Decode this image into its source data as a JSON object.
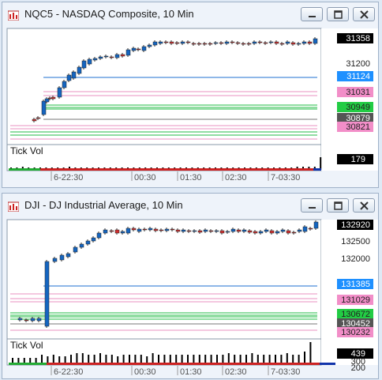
{
  "windows": [
    {
      "title": "NQC5 - NASDAQ Composite, 10 Min",
      "indicator_label": "Tick Vol",
      "x_labels": [
        "6-22:30",
        "00:30",
        "01:30",
        "02:30",
        "7-03:30"
      ],
      "price_labels": [
        {
          "text": "31358",
          "bg": "#000000",
          "fg": "#ffffff"
        },
        {
          "text": "31200",
          "bg": "",
          "fg": "#222222"
        },
        {
          "text": "31124",
          "bg": "#1e90ff",
          "fg": "#ffffff"
        },
        {
          "text": "31031",
          "bg": "#f28ec8",
          "fg": "#222222"
        },
        {
          "text": "30949",
          "bg": "#22cc44",
          "fg": "#222222"
        },
        {
          "text": "30879",
          "bg": "#555555",
          "fg": "#ffffff"
        },
        {
          "text": "30821",
          "bg": "#f28ec8",
          "fg": "#222222"
        }
      ],
      "vol_label": {
        "text": "179",
        "bg": "#000000",
        "fg": "#ffffff"
      }
    },
    {
      "title": "DJI - DJ Industrial Average, 10 Min",
      "indicator_label": "Tick Vol",
      "x_labels": [
        "6-22:30",
        "00:30",
        "01:30",
        "02:30",
        "7-03:30"
      ],
      "price_labels": [
        {
          "text": "132920",
          "bg": "#000000",
          "fg": "#ffffff"
        },
        {
          "text": "132500",
          "bg": "",
          "fg": "#222222"
        },
        {
          "text": "132000",
          "bg": "",
          "fg": "#222222"
        },
        {
          "text": "131385",
          "bg": "#1e90ff",
          "fg": "#ffffff"
        },
        {
          "text": "131029",
          "bg": "#f28ec8",
          "fg": "#222222"
        },
        {
          "text": "130672",
          "bg": "#22cc44",
          "fg": "#222222"
        },
        {
          "text": "130452",
          "bg": "#555555",
          "fg": "#ffffff"
        },
        {
          "text": "130232",
          "bg": "#f28ec8",
          "fg": "#222222"
        }
      ],
      "vol_label": {
        "text": "439",
        "bg": "#000000",
        "fg": "#ffffff"
      },
      "vol_axis_labels": [
        "300",
        "200"
      ]
    }
  ],
  "colors": {
    "up": "#1565c0",
    "down": "#d32f2f",
    "level_blue": "#1e6fd0",
    "level_pink": "#e890c0",
    "level_green": "#22bb44",
    "level_gray": "#777777"
  }
}
